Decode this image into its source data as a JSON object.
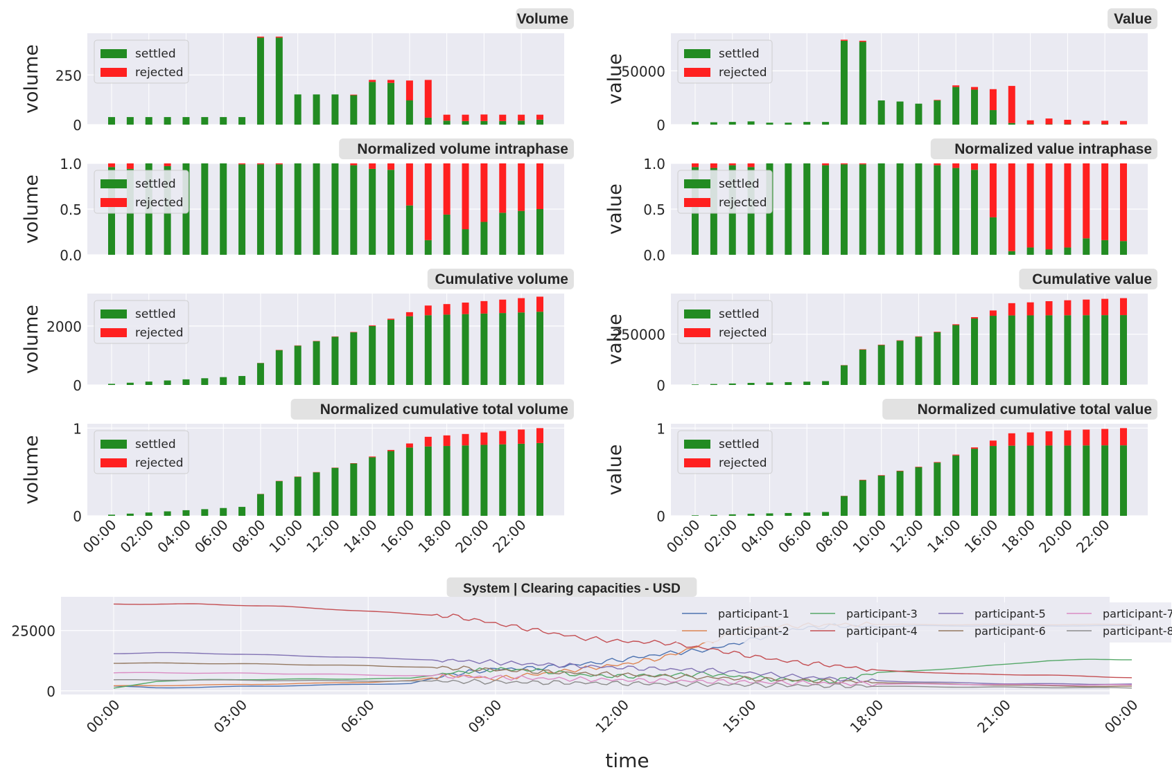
{
  "colors": {
    "settled": "#228B22",
    "rejected": "#FF2020",
    "panel_bg": "#EAEAF2",
    "grid": "#FFFFFF",
    "title_bg": "#E2E2E2"
  },
  "legend": {
    "settled": "settled",
    "rejected": "rejected"
  },
  "hour_labels": [
    "00:00",
    "02:00",
    "04:00",
    "06:00",
    "08:00",
    "10:00",
    "12:00",
    "14:00",
    "16:00",
    "18:00",
    "20:00",
    "22:00"
  ],
  "chart_data": [
    {
      "type": "bar",
      "stacked": true,
      "title": "Volume",
      "ylabel": "volume",
      "ylim": [
        0,
        460
      ],
      "yticks": [
        "0",
        "250"
      ],
      "ytick_values": [
        0,
        250
      ],
      "categories_count": 24,
      "series": [
        {
          "name": "settled",
          "values": [
            38,
            38,
            38,
            38,
            38,
            38,
            38,
            38,
            438,
            438,
            152,
            152,
            152,
            148,
            215,
            210,
            122,
            35,
            20,
            18,
            18,
            18,
            20,
            25
          ]
        },
        {
          "name": "rejected",
          "values": [
            0,
            0,
            0,
            0,
            0,
            0,
            0,
            0,
            5,
            5,
            0,
            0,
            0,
            3,
            10,
            15,
            100,
            190,
            30,
            32,
            33,
            32,
            30,
            25
          ]
        }
      ],
      "legend_position": "upper left"
    },
    {
      "type": "bar",
      "stacked": true,
      "title": "Value",
      "ylabel": "value",
      "ylim": [
        0,
        85000
      ],
      "yticks": [
        "0",
        "50000"
      ],
      "ytick_values": [
        0,
        50000
      ],
      "categories_count": 24,
      "series": [
        {
          "name": "settled",
          "values": [
            2500,
            2200,
            2500,
            3000,
            1800,
            1800,
            2500,
            2500,
            78000,
            77000,
            22500,
            21500,
            19500,
            22500,
            35000,
            32500,
            13500,
            1500,
            400,
            300,
            300,
            300,
            300,
            200
          ]
        },
        {
          "name": "rejected",
          "values": [
            0,
            0,
            0,
            0,
            0,
            0,
            0,
            0,
            1000,
            1000,
            0,
            0,
            0,
            500,
            1500,
            2500,
            19500,
            34500,
            3600,
            5400,
            4200,
            3200,
            3300,
            3200
          ]
        }
      ],
      "legend_position": "upper left"
    },
    {
      "type": "bar",
      "stacked": true,
      "title": "Normalized volume intraphase",
      "ylabel": "volume",
      "ylim": [
        0,
        1.0
      ],
      "yticks": [
        "0.0",
        "0.5",
        "1.0"
      ],
      "ytick_values": [
        0,
        0.5,
        1.0
      ],
      "categories_count": 24,
      "series": [
        {
          "name": "settled",
          "values": [
            0.96,
            0.94,
            1.0,
            0.97,
            1.0,
            1.0,
            1.0,
            0.99,
            0.99,
            0.99,
            1.0,
            1.0,
            1.0,
            0.98,
            0.94,
            0.93,
            0.54,
            0.16,
            0.44,
            0.28,
            0.36,
            0.46,
            0.48,
            0.5
          ]
        },
        {
          "name": "rejected",
          "values": [
            0.04,
            0.06,
            0,
            0.03,
            0,
            0,
            0,
            0.01,
            0.01,
            0.01,
            0,
            0,
            0,
            0.02,
            0.06,
            0.07,
            0.46,
            0.84,
            0.56,
            0.72,
            0.64,
            0.54,
            0.52,
            0.5
          ]
        }
      ],
      "legend_position": "upper left"
    },
    {
      "type": "bar",
      "stacked": true,
      "title": "Normalized value intraphase",
      "ylabel": "value",
      "ylim": [
        0,
        1.0
      ],
      "yticks": [
        "0.0",
        "0.5",
        "1.0"
      ],
      "ytick_values": [
        0,
        0.5,
        1.0
      ],
      "categories_count": 24,
      "series": [
        {
          "name": "settled",
          "values": [
            0.96,
            0.95,
            0.98,
            0.96,
            1.0,
            1.0,
            1.0,
            0.98,
            0.99,
            0.99,
            1.0,
            1.0,
            1.0,
            0.98,
            0.95,
            0.93,
            0.41,
            0.04,
            0.08,
            0.06,
            0.08,
            0.18,
            0.16,
            0.15
          ]
        },
        {
          "name": "rejected",
          "values": [
            0.04,
            0.05,
            0.02,
            0.04,
            0,
            0,
            0,
            0.02,
            0.01,
            0.01,
            0,
            0,
            0,
            0.02,
            0.05,
            0.07,
            0.59,
            0.96,
            0.92,
            0.94,
            0.92,
            0.82,
            0.84,
            0.85
          ]
        }
      ],
      "legend_position": "upper left"
    },
    {
      "type": "bar",
      "stacked": true,
      "title": "Cumulative volume",
      "ylabel": "volume",
      "ylim": [
        0,
        3100
      ],
      "yticks": [
        "0",
        "2000"
      ],
      "ytick_values": [
        0,
        2000
      ],
      "categories_count": 24,
      "series": [
        {
          "name": "settled",
          "values": [
            38,
            76,
            114,
            152,
            190,
            228,
            266,
            304,
            742,
            1180,
            1332,
            1484,
            1636,
            1784,
            1999,
            2209,
            2331,
            2366,
            2386,
            2404,
            2422,
            2440,
            2460,
            2485
          ]
        },
        {
          "name": "rejected",
          "values": [
            0,
            0,
            0,
            0,
            0,
            0,
            0,
            0,
            5,
            10,
            10,
            10,
            10,
            13,
            23,
            38,
            138,
            328,
            358,
            390,
            423,
            455,
            485,
            510
          ]
        }
      ],
      "legend_position": "upper left"
    },
    {
      "type": "bar",
      "stacked": true,
      "title": "Cumulative value",
      "ylabel": "value",
      "ylim": [
        0,
        450000
      ],
      "yticks": [
        "0",
        "250000"
      ],
      "ytick_values": [
        0,
        250000
      ],
      "categories_count": 24,
      "series": [
        {
          "name": "settled",
          "values": [
            2500,
            4700,
            7200,
            10200,
            12000,
            13800,
            16300,
            18800,
            96800,
            173800,
            196300,
            217800,
            237300,
            259800,
            294800,
            327300,
            340800,
            342300,
            342700,
            343000,
            343300,
            343600,
            343900,
            344100
          ]
        },
        {
          "name": "rejected",
          "values": [
            0,
            0,
            0,
            0,
            0,
            0,
            0,
            0,
            1000,
            2000,
            2000,
            2000,
            2000,
            2500,
            4000,
            6500,
            26000,
            60500,
            64100,
            69500,
            73700,
            76900,
            80200,
            83400
          ]
        }
      ],
      "legend_position": "upper left"
    },
    {
      "type": "bar",
      "stacked": true,
      "title": "Normalized cumulative total volume",
      "ylabel": "volume",
      "ylim": [
        0,
        1.05
      ],
      "yticks": [
        "0",
        "1"
      ],
      "ytick_values": [
        0,
        1
      ],
      "categories_count": 24,
      "series": [
        {
          "name": "settled",
          "values": [
            0.013,
            0.025,
            0.038,
            0.051,
            0.064,
            0.076,
            0.089,
            0.102,
            0.248,
            0.395,
            0.445,
            0.496,
            0.547,
            0.596,
            0.668,
            0.738,
            0.779,
            0.791,
            0.797,
            0.803,
            0.809,
            0.815,
            0.822,
            0.83
          ]
        },
        {
          "name": "rejected",
          "values": [
            0,
            0,
            0,
            0,
            0,
            0,
            0,
            0,
            0.002,
            0.003,
            0.003,
            0.003,
            0.003,
            0.004,
            0.008,
            0.013,
            0.046,
            0.11,
            0.12,
            0.13,
            0.141,
            0.152,
            0.162,
            0.17
          ]
        }
      ],
      "legend_position": "upper left"
    },
    {
      "type": "bar",
      "stacked": true,
      "title": "Normalized cumulative total value",
      "ylabel": "value",
      "ylim": [
        0,
        1.05
      ],
      "yticks": [
        "0",
        "1"
      ],
      "ytick_values": [
        0,
        1
      ],
      "categories_count": 24,
      "series": [
        {
          "name": "settled",
          "values": [
            0.006,
            0.011,
            0.017,
            0.024,
            0.028,
            0.032,
            0.038,
            0.044,
            0.226,
            0.406,
            0.459,
            0.509,
            0.555,
            0.607,
            0.689,
            0.765,
            0.797,
            0.8,
            0.801,
            0.802,
            0.802,
            0.803,
            0.804,
            0.804
          ]
        },
        {
          "name": "rejected",
          "values": [
            0,
            0,
            0,
            0,
            0,
            0,
            0,
            0,
            0.002,
            0.005,
            0.005,
            0.005,
            0.005,
            0.006,
            0.009,
            0.015,
            0.061,
            0.141,
            0.15,
            0.162,
            0.172,
            0.18,
            0.187,
            0.196
          ]
        }
      ],
      "legend_position": "upper left"
    },
    {
      "type": "line",
      "title": "System | Clearing capacities - USD",
      "xlabel": "time",
      "ylim": [
        -1500,
        39000
      ],
      "yticks": [
        "0",
        "25000"
      ],
      "ytick_values": [
        0,
        25000
      ],
      "x_ticks": [
        "00:00",
        "03:00",
        "06:00",
        "09:00",
        "12:00",
        "15:00",
        "18:00",
        "21:00",
        "00:00"
      ],
      "x_hours": [
        0,
        1,
        2,
        3,
        4,
        5,
        6,
        7,
        8,
        9,
        10,
        11,
        12,
        13,
        14,
        15,
        16,
        17,
        18,
        19,
        20,
        21,
        22,
        23,
        24
      ],
      "legend_position": "upper right",
      "series": [
        {
          "name": "participant-1",
          "color": "#4C72B0",
          "values": [
            2000,
            1200,
            1500,
            1800,
            2100,
            2400,
            2800,
            3000,
            7000,
            9000,
            9500,
            11000,
            13000,
            15500,
            17000,
            21000,
            25500,
            27000,
            26500,
            27000,
            27000,
            27000,
            27000,
            27000,
            27000
          ]
        },
        {
          "name": "participant-2",
          "color": "#DD8452",
          "values": [
            2000,
            2200,
            2400,
            2600,
            2900,
            3200,
            3600,
            4200,
            6500,
            5000,
            7000,
            9000,
            11000,
            14000,
            20000,
            26000,
            27000,
            27500,
            27500,
            27500,
            27500,
            27500,
            27500,
            27500,
            27500
          ]
        },
        {
          "name": "participant-3",
          "color": "#55A868",
          "values": [
            1000,
            4000,
            4500,
            4700,
            4800,
            4900,
            5000,
            5200,
            7500,
            9000,
            8500,
            6500,
            6000,
            6500,
            7000,
            5500,
            4500,
            4000,
            7500,
            8500,
            9500,
            11000,
            12500,
            13000,
            13000
          ]
        },
        {
          "name": "participant-4",
          "color": "#C44E52",
          "values": [
            36000,
            36000,
            36000,
            35500,
            35000,
            34000,
            33000,
            32000,
            31000,
            28000,
            25000,
            22000,
            20500,
            20000,
            17500,
            14500,
            12000,
            10500,
            8500,
            7800,
            7000,
            6800,
            6500,
            6000,
            5500
          ]
        },
        {
          "name": "participant-5",
          "color": "#8172B3",
          "values": [
            15500,
            15800,
            15600,
            15200,
            14700,
            14200,
            13700,
            13200,
            12600,
            11800,
            11000,
            10300,
            9600,
            9000,
            8500,
            7500,
            6000,
            5000,
            4200,
            3700,
            3300,
            3000,
            2900,
            2800,
            2800
          ]
        },
        {
          "name": "participant-6",
          "color": "#937860",
          "values": [
            11500,
            11500,
            11400,
            11200,
            11000,
            10700,
            10400,
            10000,
            9500,
            8700,
            8000,
            7300,
            6700,
            6100,
            5500,
            5000,
            4500,
            4000,
            3500,
            3100,
            2700,
            2400,
            2100,
            1900,
            1800
          ]
        },
        {
          "name": "participant-7",
          "color": "#DA8BC3",
          "values": [
            7500,
            7500,
            7400,
            7300,
            7100,
            6900,
            6600,
            6300,
            6000,
            5600,
            5200,
            4800,
            4500,
            4200,
            3900,
            3600,
            3300,
            3100,
            2900,
            2800,
            2700,
            2600,
            2500,
            2400,
            2400
          ]
        },
        {
          "name": "participant-8",
          "color": "#8C8C8C",
          "values": [
            4500,
            4500,
            4500,
            4400,
            4300,
            4200,
            4100,
            4000,
            3900,
            3700,
            3500,
            3300,
            3100,
            2900,
            2700,
            2500,
            2300,
            2100,
            1900,
            1700,
            1600,
            1500,
            1400,
            1300,
            1200
          ]
        }
      ]
    }
  ]
}
